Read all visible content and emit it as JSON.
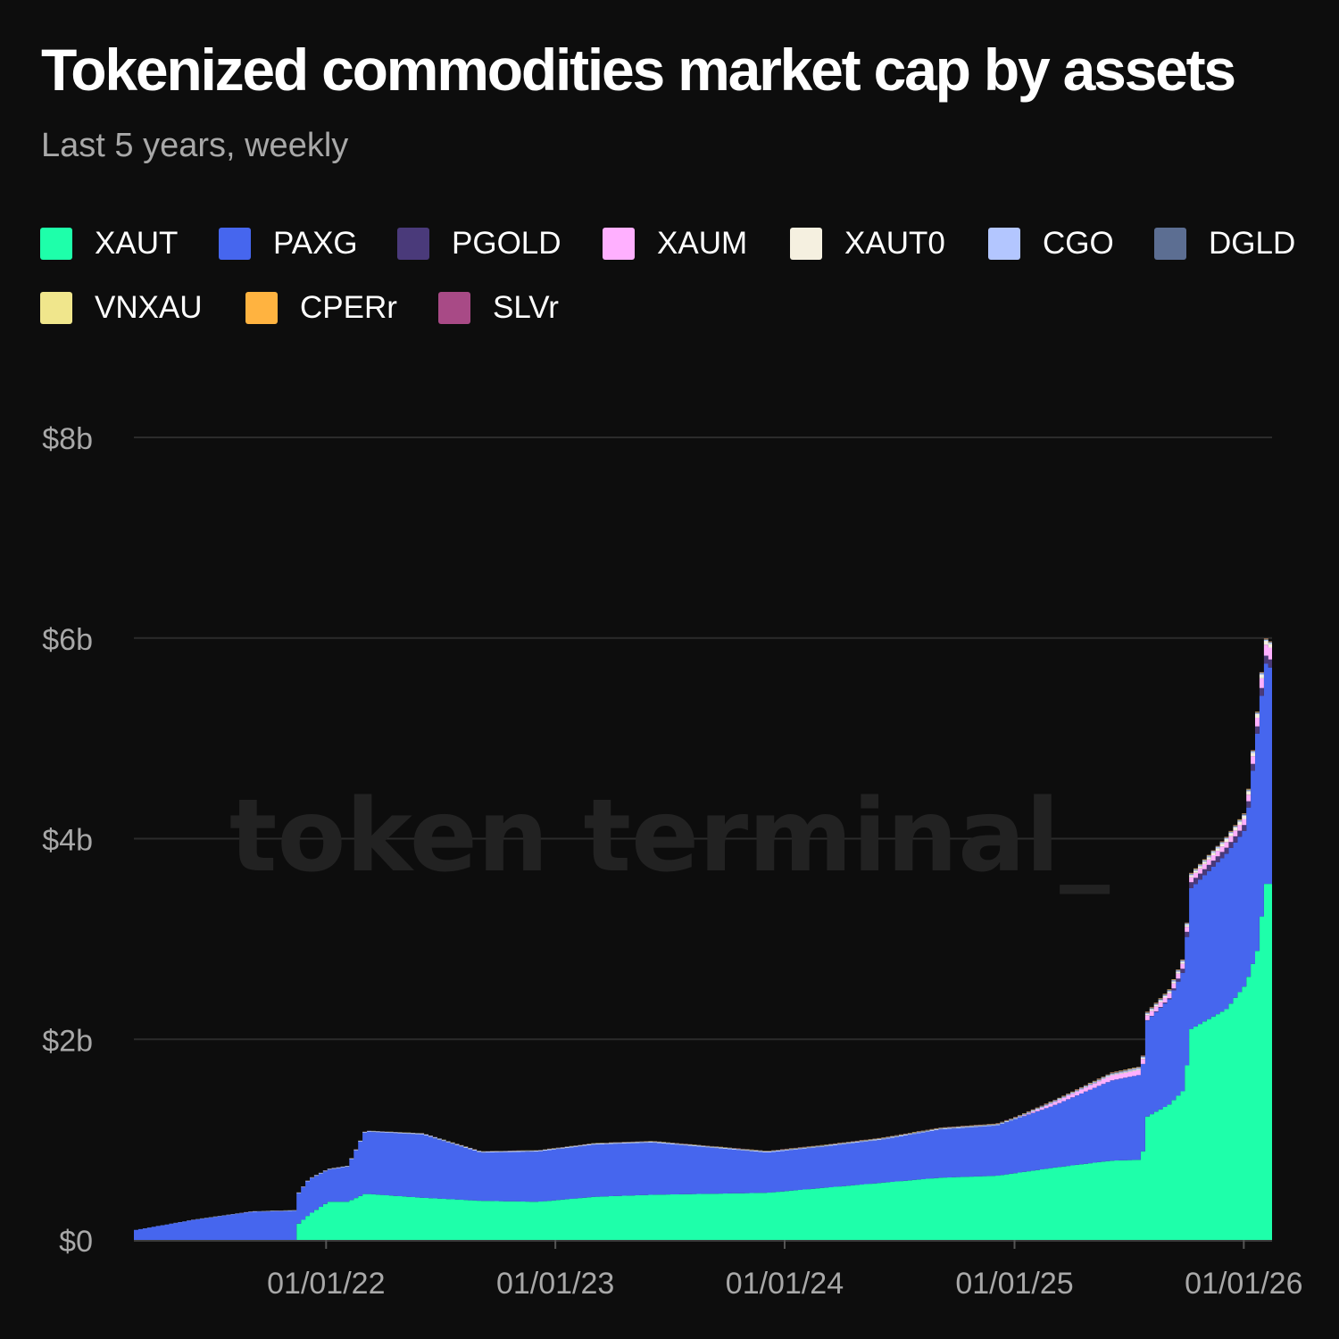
{
  "header": {
    "title": "Tokenized commodities market cap by assets",
    "subtitle": "Last 5 years, weekly"
  },
  "watermark": "token terminal_",
  "colors": {
    "background": "#0d0d0d",
    "grid": "#2b2b2b",
    "axis_text": "#a8a8a8"
  },
  "chart_data": {
    "type": "area",
    "stacked": true,
    "title": "Tokenized commodities market cap by assets",
    "subtitle": "Last 5 years, weekly",
    "y_ticks": [
      {
        "value": 0,
        "label": "$0"
      },
      {
        "value": 2,
        "label": "$2b"
      },
      {
        "value": 4,
        "label": "$4b"
      },
      {
        "value": 6,
        "label": "$6b"
      },
      {
        "value": 8,
        "label": "$8b"
      }
    ],
    "ylim": [
      0,
      8
    ],
    "y_unit": "billion USD",
    "x_range": [
      "2021-03-01",
      "2026-02-15"
    ],
    "x_ticks": [
      {
        "date": "2022-01-01",
        "label": "01/01/22"
      },
      {
        "date": "2023-01-01",
        "label": "01/01/23"
      },
      {
        "date": "2024-01-01",
        "label": "01/01/24"
      },
      {
        "date": "2025-01-01",
        "label": "01/01/25"
      },
      {
        "date": "2026-01-01",
        "label": "01/01/26"
      }
    ],
    "grid": true,
    "legend_position": "top-left",
    "series": [
      {
        "name": "XAUT",
        "color": "#1effaa",
        "points": [
          [
            "2021-03-01",
            0
          ],
          [
            "2021-11-10",
            0
          ],
          [
            "2021-11-11",
            0.14
          ],
          [
            "2021-12-01",
            0.25
          ],
          [
            "2022-01-01",
            0.38
          ],
          [
            "2022-02-01",
            0.38
          ],
          [
            "2022-03-01",
            0.46
          ],
          [
            "2022-06-01",
            0.42
          ],
          [
            "2022-09-01",
            0.39
          ],
          [
            "2022-12-01",
            0.38
          ],
          [
            "2023-03-01",
            0.43
          ],
          [
            "2023-06-01",
            0.45
          ],
          [
            "2023-09-01",
            0.46
          ],
          [
            "2023-12-01",
            0.47
          ],
          [
            "2024-03-01",
            0.52
          ],
          [
            "2024-06-01",
            0.57
          ],
          [
            "2024-09-01",
            0.62
          ],
          [
            "2024-12-01",
            0.64
          ],
          [
            "2025-03-01",
            0.72
          ],
          [
            "2025-06-01",
            0.79
          ],
          [
            "2025-07-20",
            0.8
          ],
          [
            "2025-07-25",
            1.22
          ],
          [
            "2025-09-01",
            1.35
          ],
          [
            "2025-09-25",
            1.5
          ],
          [
            "2025-10-05",
            2.1
          ],
          [
            "2025-12-01",
            2.3
          ],
          [
            "2026-01-01",
            2.55
          ],
          [
            "2026-01-20",
            2.9
          ],
          [
            "2026-02-01",
            3.55
          ],
          [
            "2026-02-10",
            3.55
          ]
        ]
      },
      {
        "name": "PAXG",
        "color": "#4666ee",
        "points": [
          [
            "2021-03-01",
            0.1
          ],
          [
            "2021-06-01",
            0.2
          ],
          [
            "2021-09-01",
            0.28
          ],
          [
            "2021-11-10",
            0.29
          ],
          [
            "2021-12-01",
            0.35
          ],
          [
            "2022-01-01",
            0.32
          ],
          [
            "2022-02-01",
            0.35
          ],
          [
            "2022-03-01",
            0.62
          ],
          [
            "2022-06-01",
            0.63
          ],
          [
            "2022-09-01",
            0.48
          ],
          [
            "2022-12-01",
            0.5
          ],
          [
            "2023-03-01",
            0.52
          ],
          [
            "2023-06-01",
            0.52
          ],
          [
            "2023-09-01",
            0.46
          ],
          [
            "2023-12-01",
            0.4
          ],
          [
            "2024-03-01",
            0.41
          ],
          [
            "2024-06-01",
            0.43
          ],
          [
            "2024-09-01",
            0.48
          ],
          [
            "2024-12-01",
            0.5
          ],
          [
            "2025-03-01",
            0.62
          ],
          [
            "2025-06-01",
            0.8
          ],
          [
            "2025-07-20",
            0.85
          ],
          [
            "2025-07-25",
            0.95
          ],
          [
            "2025-09-01",
            1.05
          ],
          [
            "2025-09-25",
            1.2
          ],
          [
            "2025-10-05",
            1.4
          ],
          [
            "2025-12-01",
            1.55
          ],
          [
            "2026-01-01",
            1.55
          ],
          [
            "2026-01-20",
            2.2
          ],
          [
            "2026-02-01",
            2.2
          ],
          [
            "2026-02-10",
            2.15
          ]
        ]
      },
      {
        "name": "PGOLD",
        "color": "#4a3a7a",
        "points": [
          [
            "2021-03-01",
            0
          ],
          [
            "2025-06-01",
            0
          ],
          [
            "2025-07-20",
            0
          ],
          [
            "2025-09-01",
            0.01
          ],
          [
            "2025-10-05",
            0.06
          ],
          [
            "2025-12-01",
            0.06
          ],
          [
            "2026-01-01",
            0.06
          ],
          [
            "2026-02-01",
            0.08
          ],
          [
            "2026-02-10",
            0.08
          ]
        ]
      },
      {
        "name": "XAUM",
        "color": "#ffb0ff",
        "points": [
          [
            "2021-03-01",
            0
          ],
          [
            "2024-12-31",
            0
          ],
          [
            "2025-03-01",
            0.03
          ],
          [
            "2025-06-01",
            0.05
          ],
          [
            "2025-09-01",
            0.05
          ],
          [
            "2025-10-05",
            0.05
          ],
          [
            "2026-01-01",
            0.06
          ],
          [
            "2026-02-10",
            0.12
          ]
        ]
      },
      {
        "name": "XAUT0",
        "color": "#f5f0e0",
        "points": [
          [
            "2021-03-01",
            0
          ],
          [
            "2025-04-01",
            0
          ],
          [
            "2025-10-05",
            0.02
          ],
          [
            "2026-02-10",
            0.04
          ]
        ]
      },
      {
        "name": "CGO",
        "color": "#b3c6ff",
        "points": [
          [
            "2021-03-01",
            0
          ],
          [
            "2022-06-01",
            0.01
          ],
          [
            "2026-02-10",
            0.01
          ]
        ]
      },
      {
        "name": "DGLD",
        "color": "#5c6e92",
        "points": [
          [
            "2021-03-01",
            0
          ],
          [
            "2026-02-10",
            0.005
          ]
        ]
      },
      {
        "name": "VNXAU",
        "color": "#f0e68c",
        "points": [
          [
            "2021-03-01",
            0
          ],
          [
            "2026-02-10",
            0.005
          ]
        ]
      },
      {
        "name": "CPERr",
        "color": "#ffb340",
        "points": [
          [
            "2021-03-01",
            0
          ],
          [
            "2026-02-10",
            0.002
          ]
        ]
      },
      {
        "name": "SLVr",
        "color": "#a84a86",
        "points": [
          [
            "2021-03-01",
            0
          ],
          [
            "2026-02-10",
            0.002
          ]
        ]
      }
    ]
  }
}
